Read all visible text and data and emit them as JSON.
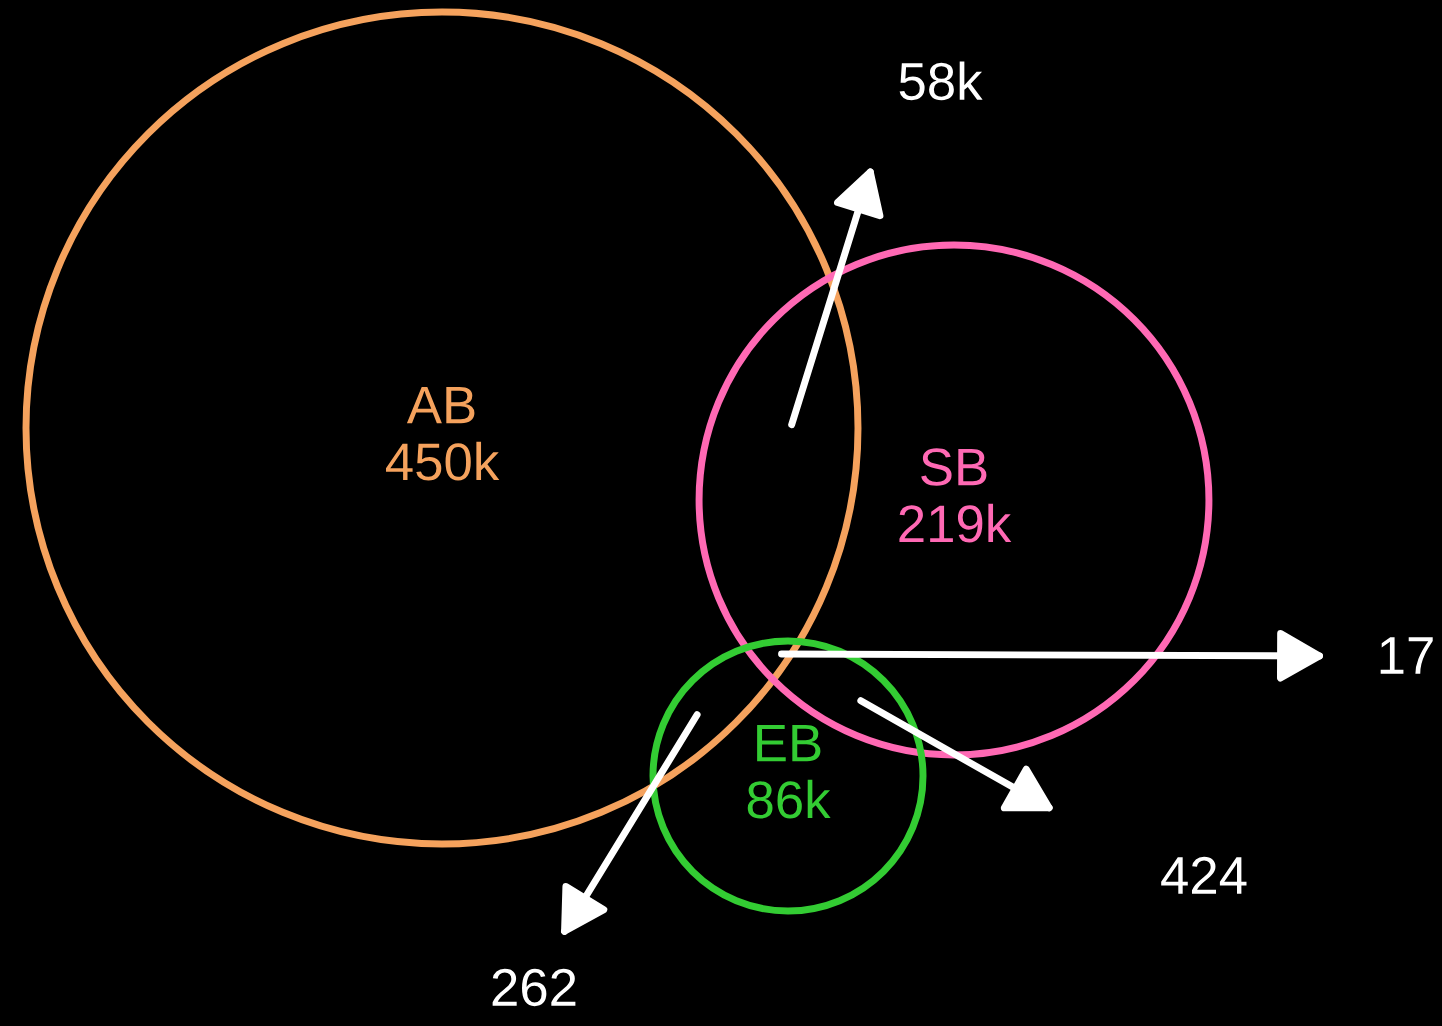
{
  "chart_data": {
    "type": "other",
    "categories": [
      "AB",
      "SB",
      "EB"
    ],
    "values": [
      450,
      219,
      86
    ],
    "value_labels": [
      "450k",
      "219k",
      "86k"
    ],
    "colors": [
      "#f5a25d",
      "#ff69b4",
      "#33cc33"
    ],
    "annotations": [
      "58k",
      "17",
      "424",
      "262"
    ]
  }
}
